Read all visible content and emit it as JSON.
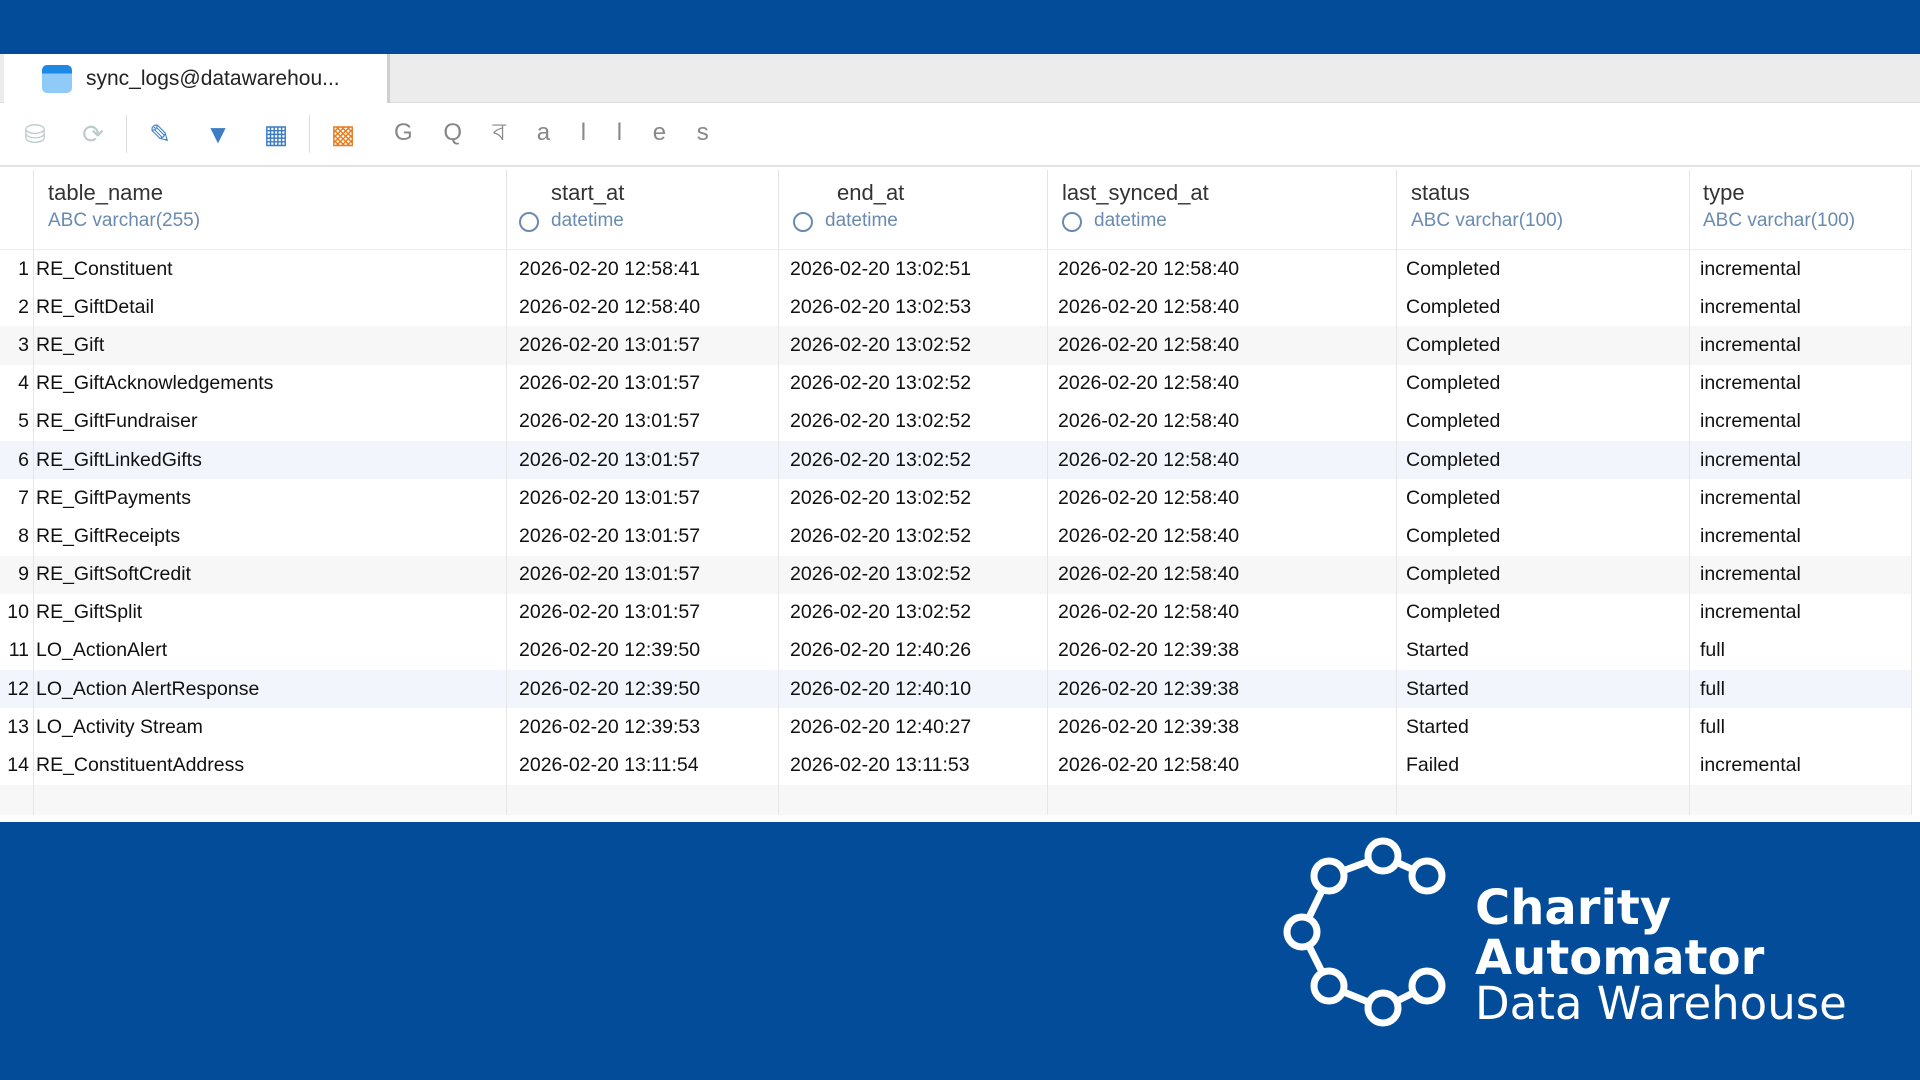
{
  "tab": {
    "title": "sync_logs@datawarehou..."
  },
  "toolbar": {
    "icons": [
      "database-check-icon",
      "database-refresh-icon",
      "edit-icon",
      "filter-sort-icon",
      "grid-icon",
      "chart-search-icon"
    ],
    "text": "G Q ব a l l e s"
  },
  "columns": [
    {
      "name": "table_name",
      "type": "ABC varchar(255)"
    },
    {
      "name": "start_at",
      "type": "datetime"
    },
    {
      "name": "end_at",
      "type": "datetime"
    },
    {
      "name": "last_synced_at",
      "type": "datetime"
    },
    {
      "name": "status",
      "type": "ABC varchar(100)"
    },
    {
      "name": "type",
      "type": "ABC varchar(100)"
    }
  ],
  "rows": [
    [
      "1",
      "RE_Constituent",
      "2026-02-20 12:58:41",
      "2026-02-20 13:02:51",
      "2026-02-20 12:58:40",
      "Completed",
      "incremental"
    ],
    [
      "2",
      "RE_GiftDetail",
      "2026-02-20 12:58:40",
      "2026-02-20 13:02:53",
      "2026-02-20 12:58:40",
      "Completed",
      "incremental"
    ],
    [
      "3",
      "RE_Gift",
      "2026-02-20 13:01:57",
      "2026-02-20 13:02:52",
      "2026-02-20 12:58:40",
      "Completed",
      "incremental"
    ],
    [
      "4",
      "RE_GiftAcknowledgements",
      "2026-02-20 13:01:57",
      "2026-02-20 13:02:52",
      "2026-02-20 12:58:40",
      "Completed",
      "incremental"
    ],
    [
      "5",
      "RE_GiftFundraiser",
      "2026-02-20 13:01:57",
      "2026-02-20 13:02:52",
      "2026-02-20 12:58:40",
      "Completed",
      "incremental"
    ],
    [
      "6",
      "RE_GiftLinkedGifts",
      "2026-02-20 13:01:57",
      "2026-02-20 13:02:52",
      "2026-02-20 12:58:40",
      "Completed",
      "incremental"
    ],
    [
      "7",
      "RE_GiftPayments",
      "2026-02-20 13:01:57",
      "2026-02-20 13:02:52",
      "2026-02-20 12:58:40",
      "Completed",
      "incremental"
    ],
    [
      "8",
      "RE_GiftReceipts",
      "2026-02-20 13:01:57",
      "2026-02-20 13:02:52",
      "2026-02-20 12:58:40",
      "Completed",
      "incremental"
    ],
    [
      "9",
      "RE_GiftSoftCredit",
      "2026-02-20 13:01:57",
      "2026-02-20 13:02:52",
      "2026-02-20 12:58:40",
      "Completed",
      "incremental"
    ],
    [
      "10",
      "RE_GiftSplit",
      "2026-02-20 13:01:57",
      "2026-02-20 13:02:52",
      "2026-02-20 12:58:40",
      "Completed",
      "incremental"
    ],
    [
      "11",
      "LO_ActionAlert",
      "2026-02-20 12:39:50",
      "2026-02-20 12:40:26",
      "2026-02-20 12:39:38",
      "Started",
      "full"
    ],
    [
      "12",
      "LO_Action AlertResponse",
      "2026-02-20 12:39:50",
      "2026-02-20 12:40:10",
      "2026-02-20 12:39:38",
      "Started",
      "full"
    ],
    [
      "13",
      "LO_Activity Stream",
      "2026-02-20 12:39:53",
      "2026-02-20 12:40:27",
      "2026-02-20 12:39:38",
      "Started",
      "full"
    ],
    [
      "14",
      "RE_ConstituentAddress",
      "2026-02-20 13:11:54",
      "2026-02-20 13:11:53",
      "2026-02-20 12:58:40",
      "Failed",
      "incremental"
    ]
  ],
  "logo": {
    "line1": "Charity",
    "line2": "Automator",
    "line3": "Data Warehouse"
  },
  "colors": {
    "brand": "#034c9a",
    "type_label": "#6a8ab0"
  }
}
